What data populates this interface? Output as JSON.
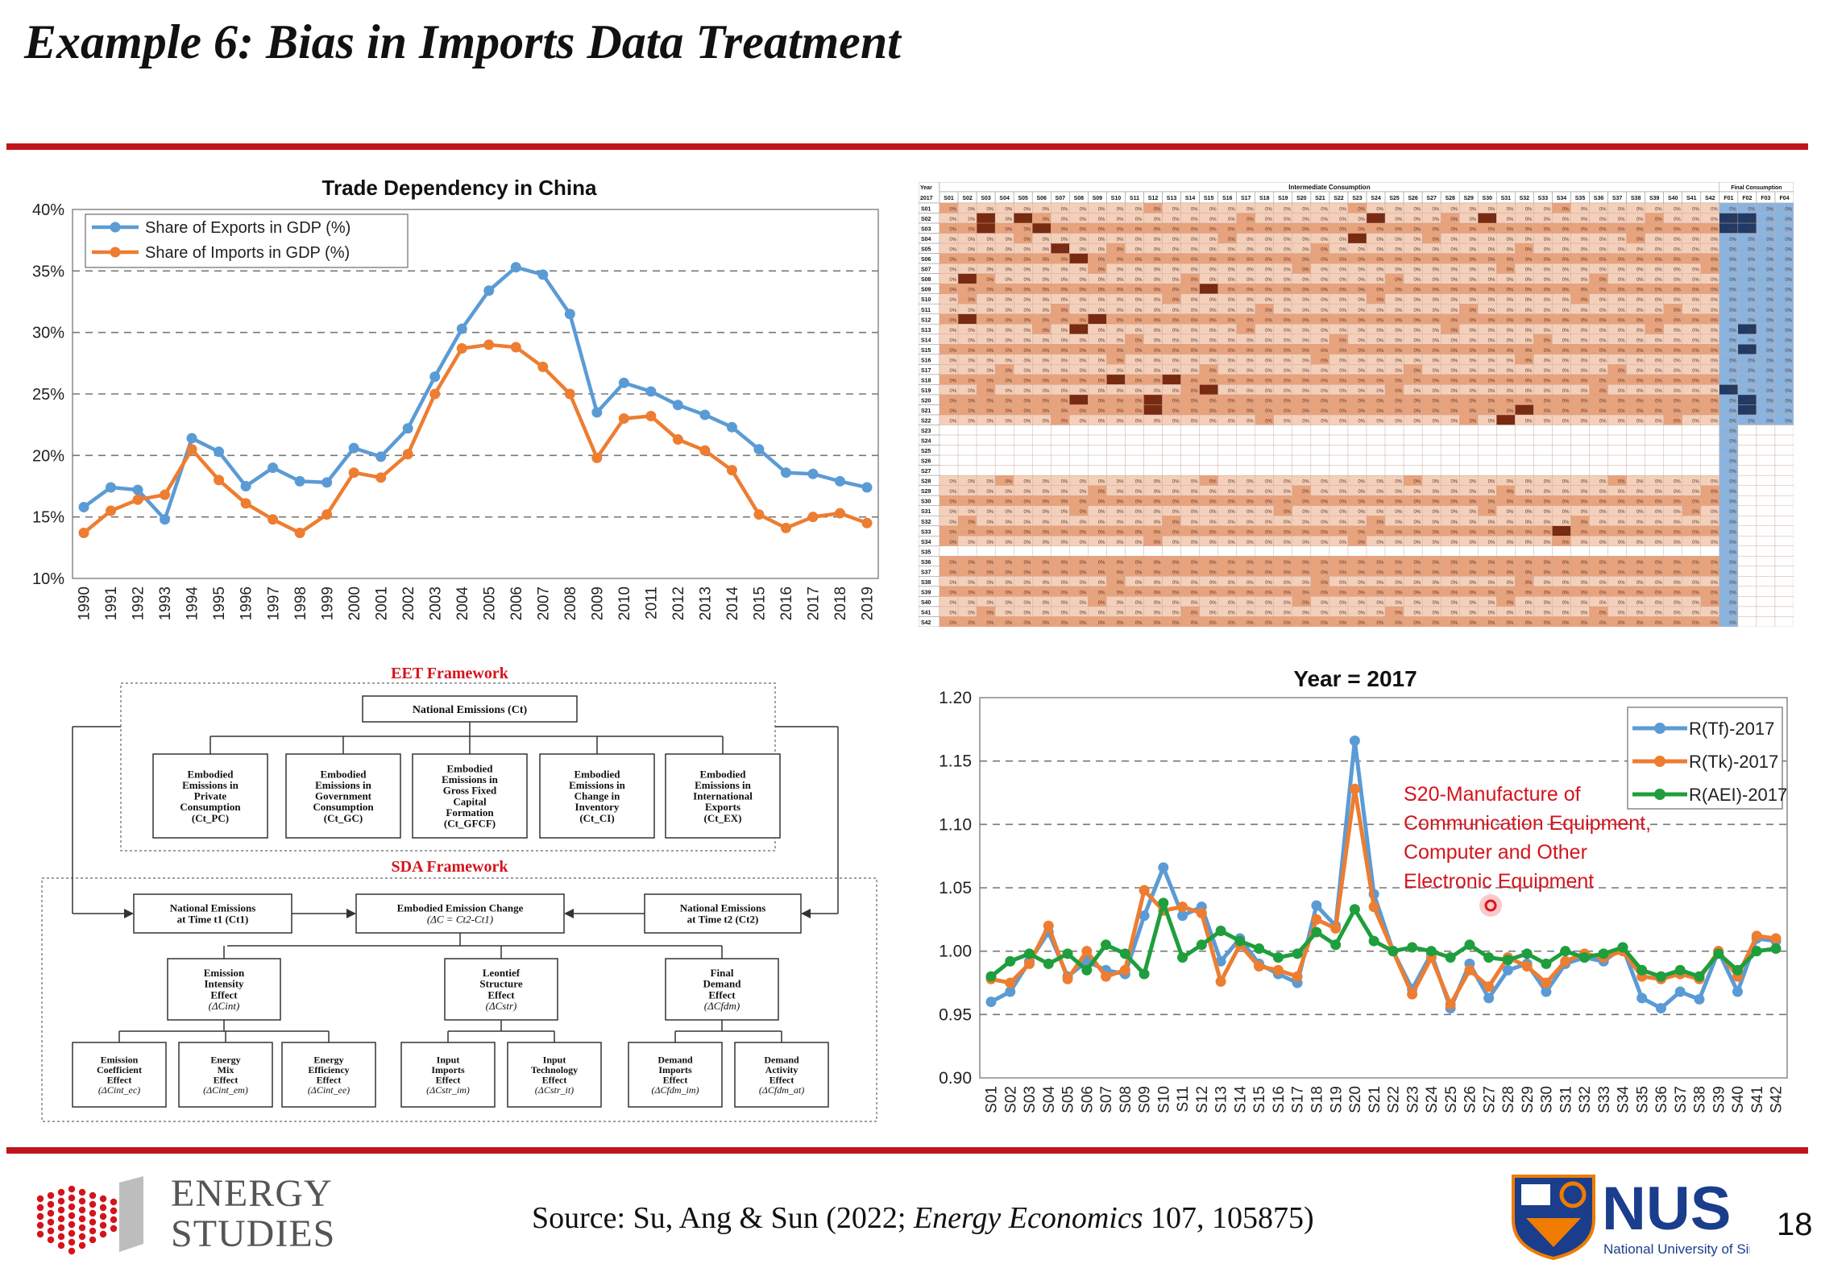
{
  "slide": {
    "title": "Example 6: Bias in Imports Data Treatment",
    "source_prefix": "Source: Su, Ang & Sun (2022; ",
    "source_journal": "Energy Economics",
    "source_suffix": " 107, 105875)",
    "page_number": "18",
    "logo_left_line1": "ENERGY",
    "logo_left_line2": "STUDIES",
    "logo_right_name": "NUS",
    "logo_right_sub": "National University of Singapore",
    "colors": {
      "accent_red": "#c0141c",
      "nus_blue": "#1a3e8c",
      "nus_orange": "#ef7c00"
    }
  },
  "chart_data": [
    {
      "type": "line",
      "title": "Trade Dependency in China",
      "x": [
        "1990",
        "1991",
        "1992",
        "1993",
        "1994",
        "1995",
        "1996",
        "1997",
        "1998",
        "1999",
        "2000",
        "2001",
        "2002",
        "2003",
        "2004",
        "2005",
        "2006",
        "2007",
        "2008",
        "2009",
        "2010",
        "2011",
        "2012",
        "2013",
        "2014",
        "2015",
        "2016",
        "2017",
        "2018",
        "2019"
      ],
      "series": [
        {
          "name": "Share of Exports in GDP (%)",
          "color": "#5b9bd5",
          "values": [
            15.8,
            17.4,
            17.2,
            14.8,
            21.4,
            20.3,
            17.5,
            19.0,
            17.9,
            17.8,
            20.6,
            19.9,
            22.2,
            26.4,
            30.3,
            33.4,
            35.3,
            34.7,
            31.5,
            23.5,
            25.9,
            25.2,
            24.1,
            23.3,
            22.3,
            20.5,
            18.6,
            18.5,
            17.9,
            17.4
          ]
        },
        {
          "name": "Share of Imports in GDP (%)",
          "color": "#ed7d31",
          "values": [
            13.7,
            15.5,
            16.4,
            16.8,
            20.5,
            18.0,
            16.1,
            14.8,
            13.7,
            15.2,
            18.6,
            18.2,
            20.1,
            25.0,
            28.7,
            29.0,
            28.8,
            27.2,
            25.0,
            19.8,
            23.0,
            23.2,
            21.3,
            20.4,
            18.8,
            15.2,
            14.1,
            15.0,
            15.3,
            14.5
          ]
        }
      ],
      "ylim": [
        10,
        40
      ],
      "yticks": [
        "10%",
        "15%",
        "20%",
        "25%",
        "30%",
        "35%",
        "40%"
      ],
      "grid": true,
      "legend": "top-left"
    },
    {
      "type": "heatmap",
      "header_year": "Year",
      "header_year_value": "2017",
      "group_intermediate": "Intermediate Consumption",
      "group_final": "Final Consumption",
      "rows": [
        "S01",
        "S02",
        "S03",
        "S04",
        "S05",
        "S06",
        "S07",
        "S08",
        "S09",
        "S10",
        "S11",
        "S12",
        "S13",
        "S14",
        "S15",
        "S16",
        "S17",
        "S18",
        "S19",
        "S20",
        "S21",
        "S22",
        "S23",
        "S24",
        "S25",
        "S26",
        "S27",
        "S28",
        "S29",
        "S30",
        "S31",
        "S32",
        "S33",
        "S34",
        "S35",
        "S36",
        "S37",
        "S38",
        "S39",
        "S40",
        "S41",
        "S42"
      ],
      "columns_intermediate": [
        "S01",
        "S02",
        "S03",
        "S04",
        "S05",
        "S06",
        "S07",
        "S08",
        "S09",
        "S10",
        "S11",
        "S12",
        "S13",
        "S14",
        "S15",
        "S16",
        "S17",
        "S18",
        "S19",
        "S20",
        "S21",
        "S22",
        "S23",
        "S24",
        "S25",
        "S26",
        "S27",
        "S28",
        "S29",
        "S30",
        "S31",
        "S32",
        "S33",
        "S34",
        "S35",
        "S36",
        "S37",
        "S38",
        "S39",
        "S40",
        "S41",
        "S42"
      ],
      "columns_final": [
        "F01",
        "F02",
        "F03",
        "F04"
      ],
      "cell_label": "0%",
      "colors": {
        "intermediate": "#e8a27c",
        "intermediate_light": "#f4d0bb",
        "intermediate_dark": "#7a2a10",
        "final": "#8ab4e0",
        "final_dark": "#1f3a66",
        "blank": "#ffffff"
      }
    },
    {
      "type": "line",
      "title": "Year = 2017",
      "x": [
        "S01",
        "S02",
        "S03",
        "S04",
        "S05",
        "S06",
        "S07",
        "S08",
        "S09",
        "S10",
        "S11",
        "S12",
        "S13",
        "S14",
        "S15",
        "S16",
        "S17",
        "S18",
        "S19",
        "S20",
        "S21",
        "S22",
        "S23",
        "S24",
        "S25",
        "S26",
        "S27",
        "S28",
        "S29",
        "S30",
        "S31",
        "S32",
        "S33",
        "S34",
        "S35",
        "S36",
        "S37",
        "S38",
        "S39",
        "S40",
        "S41",
        "S42"
      ],
      "series": [
        {
          "name": "R(Tf)-2017",
          "color": "#5b9bd5",
          "values": [
            0.96,
            0.968,
            0.992,
            1.015,
            0.98,
            0.992,
            0.985,
            0.982,
            1.028,
            1.066,
            1.028,
            1.035,
            0.992,
            1.01,
            0.99,
            0.982,
            0.975,
            1.036,
            1.02,
            1.166,
            1.045,
            1.0,
            0.97,
            0.998,
            0.955,
            0.99,
            0.963,
            0.985,
            0.99,
            0.968,
            0.99,
            0.995,
            0.992,
            1.003,
            0.963,
            0.955,
            0.968,
            0.962,
            1.0,
            0.968,
            1.01,
            1.008
          ]
        },
        {
          "name": "R(Tk)-2017",
          "color": "#ed7d31",
          "values": [
            0.978,
            0.975,
            0.99,
            1.02,
            0.978,
            1.0,
            0.98,
            0.985,
            1.048,
            1.032,
            1.035,
            1.03,
            0.976,
            1.005,
            0.988,
            0.985,
            0.98,
            1.025,
            1.018,
            1.128,
            1.035,
            1.0,
            0.966,
            0.995,
            0.958,
            0.985,
            0.972,
            0.995,
            0.988,
            0.975,
            0.992,
            0.998,
            0.995,
            1.0,
            0.98,
            0.978,
            0.982,
            0.978,
            1.0,
            0.98,
            1.012,
            1.01
          ]
        },
        {
          "name": "R(AEI)-2017",
          "color": "#1e9e3c",
          "values": [
            0.98,
            0.992,
            0.998,
            0.99,
            0.998,
            0.985,
            1.005,
            0.998,
            0.982,
            1.038,
            0.995,
            1.005,
            1.016,
            1.008,
            1.002,
            0.995,
            0.998,
            1.015,
            1.005,
            1.033,
            1.008,
            1.0,
            1.003,
            1.0,
            0.995,
            1.005,
            0.995,
            0.993,
            0.998,
            0.99,
            1.0,
            0.995,
            0.998,
            1.003,
            0.985,
            0.98,
            0.985,
            0.98,
            0.998,
            0.985,
            1.0,
            1.002
          ]
        }
      ],
      "ylim": [
        0.9,
        1.2
      ],
      "yticks": [
        "0.90",
        "0.95",
        "1.00",
        "1.05",
        "1.10",
        "1.15",
        "1.20"
      ],
      "grid": true,
      "legend": "top-right",
      "annotation": [
        "S20-Manufacture of",
        "Communication Equipment,",
        "Computer and Other",
        "Electronic Equipment"
      ]
    }
  ],
  "diagram": {
    "eet_title": "EET Framework",
    "sda_title": "SDA Framework",
    "national_ct": "National Emissions (Ct)",
    "eet_boxes": [
      [
        "Embodied",
        "Emissions in",
        "Private",
        "Consumption",
        "(Ct_PC)"
      ],
      [
        "Embodied",
        "Emissions in",
        "Government",
        "Consumption",
        "(Ct_GC)"
      ],
      [
        "Embodied",
        "Emissions in",
        "Gross Fixed",
        "Capital",
        "Formation",
        "(Ct_GFCF)"
      ],
      [
        "Embodied",
        "Emissions in",
        "Change in",
        "Inventory",
        "(Ct_CI)"
      ],
      [
        "Embodied",
        "Emissions in",
        "International",
        "Exports",
        "(Ct_EX)"
      ]
    ],
    "sda_t1": [
      "National Emissions",
      "at Time t1 (Ct1)"
    ],
    "sda_change": [
      "Embodied Emission Change",
      "(ΔC = Ct2-Ct1)"
    ],
    "sda_t2": [
      "National Emissions",
      "at Time t2 (Ct2)"
    ],
    "effects": [
      [
        "Emission",
        "Intensity",
        "Effect",
        "(ΔCint)"
      ],
      [
        "Leontief",
        "Structure",
        "Effect",
        "(ΔCstr)"
      ],
      [
        "Final",
        "Demand",
        "Effect",
        "(ΔCfdm)"
      ]
    ],
    "sub_effects": [
      [
        "Emission",
        "Coefficient",
        "Effect",
        "(ΔCint_ec)"
      ],
      [
        "Energy",
        "Mix",
        "Effect",
        "(ΔCint_em)"
      ],
      [
        "Energy",
        "Efficiency",
        "Effect",
        "(ΔCint_ee)"
      ],
      [
        "Input",
        "Imports",
        "Effect",
        "(ΔCstr_im)"
      ],
      [
        "Input",
        "Technology",
        "Effect",
        "(ΔCstr_it)"
      ],
      [
        "Demand",
        "Imports",
        "Effect",
        "(ΔCfdm_im)"
      ],
      [
        "Demand",
        "Activity",
        "Effect",
        "(ΔCfdm_at)"
      ]
    ]
  }
}
